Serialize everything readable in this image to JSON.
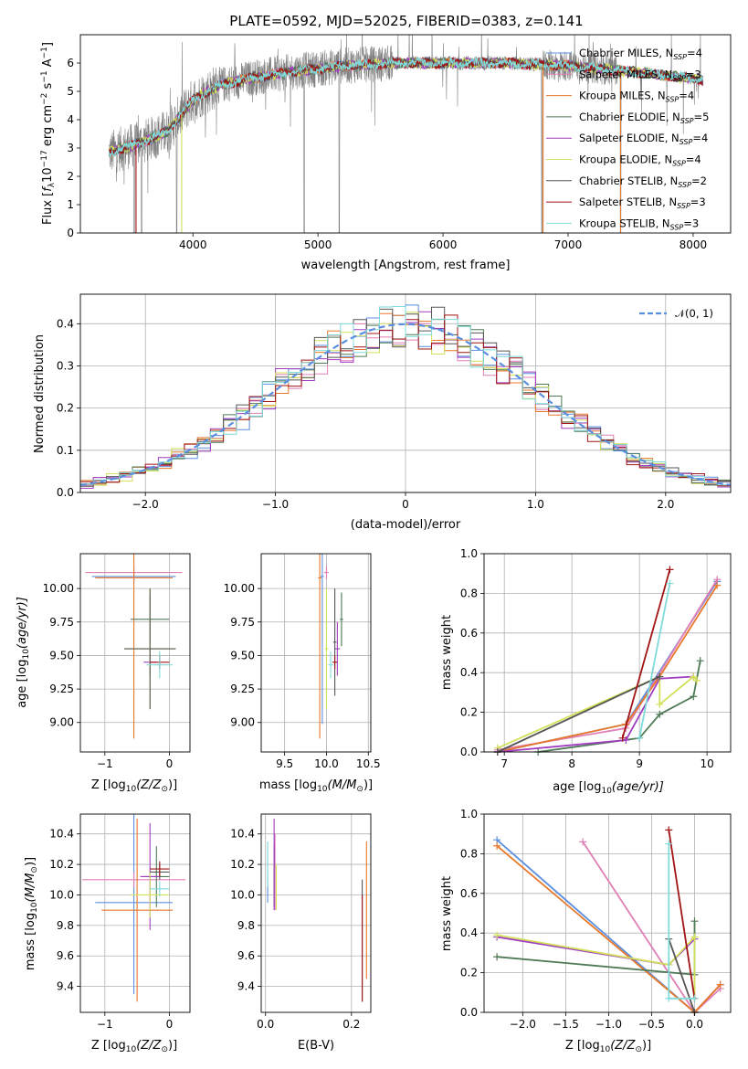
{
  "figure": {
    "title": "PLATE=0592, MJD=52025, FIBERID=0383, z=0.141",
    "colors": {
      "Chabrier MILES": "#5b8fe0",
      "Salpeter MILES": "#e07fb6",
      "Kroupa MILES": "#e8782a",
      "Chabrier ELODIE": "#4e7a55",
      "Salpeter ELODIE": "#a03cc0",
      "Kroupa ELODIE": "#d2e05a",
      "Chabrier STELIB": "#555555",
      "Salpeter STELIB": "#a01414",
      "Kroupa STELIB": "#7fdada",
      "data": "#808080",
      "normal": "#5b8fe0"
    }
  },
  "chart_data": [
    {
      "id": "spectrum",
      "type": "line",
      "title": "PLATE=0592, MJD=52025, FIBERID=0383, z=0.141",
      "xlabel": "wavelength [Angstrom, rest frame]",
      "ylabel": "Flux [f_λ 10^-17 erg cm^-2 s^-1 A^-1]",
      "ylabel_parts": {
        "a": "Flux [",
        "b": "f",
        "c": "λ",
        "d": "10",
        "e": "−17",
        "f": " erg cm",
        "g": "−2",
        "h": " s",
        "i": "−1",
        "j": " A",
        "k": "−1",
        "l": "]"
      },
      "xlim": [
        3100,
        8300
      ],
      "ylim": [
        0,
        7
      ],
      "xticks": [
        4000,
        5000,
        6000,
        7000,
        8000
      ],
      "yticks": [
        0,
        1,
        2,
        3,
        4,
        5,
        6
      ],
      "legend_position": "top-right",
      "series": [
        {
          "name": "Chabrier MILES, N_SSP=4",
          "label": "Chabrier MILES, N",
          "sub": "SSP",
          "n": "=4"
        },
        {
          "name": "Salpeter MILES, N_SSP=3",
          "label": "Salpeter MILES, N",
          "sub": "SSP",
          "n": "=3"
        },
        {
          "name": "Kroupa MILES, N_SSP=4",
          "label": "Kroupa MILES, N",
          "sub": "SSP",
          "n": "=4"
        },
        {
          "name": "Chabrier ELODIE, N_SSP=5",
          "label": "Chabrier ELODIE, N",
          "sub": "SSP",
          "n": "=5"
        },
        {
          "name": "Salpeter ELODIE, N_SSP=4",
          "label": "Salpeter ELODIE, N",
          "sub": "SSP",
          "n": "=4"
        },
        {
          "name": "Kroupa ELODIE, N_SSP=4",
          "label": "Kroupa ELODIE, N",
          "sub": "SSP",
          "n": "=4"
        },
        {
          "name": "Chabrier STELIB, N_SSP=2",
          "label": "Chabrier STELIB, N",
          "sub": "SSP",
          "n": "=2"
        },
        {
          "name": "Salpeter STELIB, N_SSP=3",
          "label": "Salpeter STELIB, N",
          "sub": "SSP",
          "n": "=3"
        },
        {
          "name": "Kroupa STELIB, N_SSP=3",
          "label": "Kroupa STELIB, N",
          "sub": "SSP",
          "n": "=3"
        }
      ],
      "continuum_knots": [
        [
          3300,
          2.8
        ],
        [
          3600,
          3.2
        ],
        [
          3800,
          3.6
        ],
        [
          4000,
          4.7
        ],
        [
          4200,
          5.2
        ],
        [
          4500,
          5.5
        ],
        [
          4800,
          5.7
        ],
        [
          5200,
          5.9
        ],
        [
          5600,
          6.0
        ],
        [
          6000,
          6.0
        ],
        [
          6500,
          6.0
        ],
        [
          7000,
          5.9
        ],
        [
          7500,
          5.7
        ],
        [
          8100,
          5.4
        ]
      ]
    },
    {
      "id": "residuals",
      "type": "line",
      "xlabel": "(data-model)/error",
      "ylabel": "Normed distribution",
      "xlim": [
        -2.5,
        2.5
      ],
      "ylim": [
        0,
        0.47
      ],
      "xticks": [
        -2,
        -1,
        0,
        1,
        2
      ],
      "yticks": [
        0.0,
        0.1,
        0.2,
        0.3,
        0.4
      ],
      "grid": true,
      "legend_position": "top-right",
      "reference": {
        "name": "N(0,1)",
        "label": "𝒩(0, 1)",
        "mean": 0,
        "sigma": 1
      }
    },
    {
      "id": "age_vs_Z",
      "type": "scatter",
      "xlabel_parts": {
        "a": "Z [log",
        "b": "10",
        "c": "(Z/Z",
        "d": "⊙",
        "e": ")]"
      },
      "ylabel_parts": {
        "a": "age  [log",
        "b": "10",
        "c": "(age/yr)]"
      },
      "xlim": [
        -1.38,
        0.32
      ],
      "ylim": [
        8.78,
        10.26
      ],
      "xticks": [
        -1,
        0
      ],
      "yticks": [
        9.0,
        9.25,
        9.5,
        9.75,
        10.0
      ],
      "grid": true,
      "points": [
        {
          "series": "Chabrier MILES",
          "x": -0.55,
          "xerr": 0.65,
          "y": 10.09,
          "yerr": 0.05
        },
        {
          "series": "Salpeter MILES",
          "x": -0.55,
          "xerr": 0.75,
          "y": 10.12,
          "yerr": 0.05
        },
        {
          "series": "Kroupa MILES",
          "x": -0.55,
          "xerr": 0.6,
          "y": 10.08,
          "yerr": 1.2
        },
        {
          "series": "Chabrier ELODIE",
          "x": -0.3,
          "xerr": 0.3,
          "y": 9.77,
          "yerr": 0.18
        },
        {
          "series": "Salpeter ELODIE",
          "x": -0.3,
          "xerr": 0.1,
          "y": 9.45,
          "yerr": 0.1
        },
        {
          "series": "Kroupa ELODIE",
          "x": -0.3,
          "xerr": 0.4,
          "y": 9.55,
          "yerr": 0.45
        },
        {
          "series": "Chabrier STELIB",
          "x": -0.3,
          "xerr": 0.4,
          "y": 9.55,
          "yerr": 0.45
        },
        {
          "series": "Salpeter STELIB",
          "x": -0.15,
          "xerr": 0.15,
          "y": 9.45,
          "yerr": 0.05
        },
        {
          "series": "Kroupa STELIB",
          "x": -0.15,
          "xerr": 0.2,
          "y": 9.43,
          "yerr": 0.1
        }
      ]
    },
    {
      "id": "age_vs_mass",
      "type": "scatter",
      "xlabel_parts": {
        "a": "mass [log",
        "b": "10",
        "c": "(M/M",
        "d": "⊙",
        "e": ")]"
      },
      "xlim": [
        9.22,
        10.53
      ],
      "ylim": [
        8.78,
        10.26
      ],
      "xticks": [
        9.5,
        10.0,
        10.5
      ],
      "yticks": [
        9.0,
        9.25,
        9.5,
        9.75,
        10.0
      ],
      "grid": true,
      "points": [
        {
          "series": "Chabrier MILES",
          "x": 9.95,
          "xerr": 0.02,
          "y": 10.09,
          "yerr": 1.1
        },
        {
          "series": "Salpeter MILES",
          "x": 10.0,
          "xerr": 0.03,
          "y": 10.12,
          "yerr": 0.05
        },
        {
          "series": "Kroupa MILES",
          "x": 9.92,
          "xerr": 0.02,
          "y": 10.08,
          "yerr": 1.2
        },
        {
          "series": "Chabrier ELODIE",
          "x": 10.18,
          "xerr": 0.02,
          "y": 9.77,
          "yerr": 0.2
        },
        {
          "series": "Salpeter ELODIE",
          "x": 10.13,
          "xerr": 0.03,
          "y": 9.55,
          "yerr": 0.2
        },
        {
          "series": "Kroupa ELODIE",
          "x": 10.0,
          "xerr": 0.02,
          "y": 9.55,
          "yerr": 0.45
        },
        {
          "series": "Chabrier STELIB",
          "x": 10.1,
          "xerr": 0.02,
          "y": 9.6,
          "yerr": 0.4
        },
        {
          "series": "Salpeter STELIB",
          "x": 10.1,
          "xerr": 0.03,
          "y": 9.45,
          "yerr": 0.05
        },
        {
          "series": "Kroupa STELIB",
          "x": 10.05,
          "xerr": 0.03,
          "y": 9.43,
          "yerr": 0.1
        }
      ]
    },
    {
      "id": "mass_weight_vs_age",
      "type": "line",
      "xlabel_parts": {
        "a": "age  [log",
        "b": "10",
        "c": "(age/yr)]"
      },
      "ylabel": "mass weight",
      "xlim": [
        6.7,
        10.35
      ],
      "ylim": [
        0,
        1
      ],
      "xticks": [
        7,
        8,
        9,
        10
      ],
      "yticks": [
        0.0,
        0.2,
        0.4,
        0.6,
        0.8,
        1.0
      ],
      "grid": true,
      "series": [
        {
          "name": "Chabrier MILES",
          "x": [
            6.9,
            8.8,
            10.15
          ],
          "y": [
            0.0,
            0.14,
            0.86
          ]
        },
        {
          "name": "Salpeter MILES",
          "x": [
            6.9,
            8.8,
            10.15
          ],
          "y": [
            0.01,
            0.12,
            0.87
          ]
        },
        {
          "name": "Kroupa MILES",
          "x": [
            6.9,
            8.8,
            9.3,
            10.15
          ],
          "y": [
            0.0,
            0.14,
            0.38,
            0.84
          ]
        },
        {
          "name": "Chabrier ELODIE",
          "x": [
            7.5,
            9.0,
            9.3,
            9.8,
            9.9
          ],
          "y": [
            0.0,
            0.07,
            0.19,
            0.28,
            0.46
          ]
        },
        {
          "name": "Salpeter ELODIE",
          "x": [
            6.9,
            8.8,
            9.3,
            9.8
          ],
          "y": [
            0.0,
            0.06,
            0.37,
            0.38
          ]
        },
        {
          "name": "Kroupa ELODIE",
          "x": [
            6.9,
            9.3,
            9.3,
            9.8,
            9.85
          ],
          "y": [
            0.02,
            0.38,
            0.24,
            0.38,
            0.36
          ]
        },
        {
          "name": "Chabrier STELIB",
          "x": [
            6.9,
            9.3
          ],
          "y": [
            0.0,
            0.38
          ]
        },
        {
          "name": "Salpeter STELIB",
          "x": [
            8.75,
            9.45
          ],
          "y": [
            0.07,
            0.92
          ]
        },
        {
          "name": "Kroupa STELIB",
          "x": [
            9.0,
            9.45
          ],
          "y": [
            0.07,
            0.85
          ]
        }
      ]
    },
    {
      "id": "mass_vs_Z",
      "type": "scatter",
      "xlabel_parts": {
        "a": "Z [log",
        "b": "10",
        "c": "(Z/Z",
        "d": "⊙",
        "e": ")]"
      },
      "ylabel_parts": {
        "a": "mass [log",
        "b": "10",
        "c": "(M/M",
        "d": "⊙",
        "e": ")]"
      },
      "xlim": [
        -1.38,
        0.32
      ],
      "ylim": [
        9.23,
        10.53
      ],
      "xticks": [
        -1,
        0
      ],
      "yticks": [
        9.4,
        9.6,
        9.8,
        10.0,
        10.2,
        10.4
      ],
      "grid": true,
      "points": [
        {
          "series": "Chabrier MILES",
          "x": -0.55,
          "xerr": 0.6,
          "y": 9.95,
          "yerr": 0.6
        },
        {
          "series": "Salpeter MILES",
          "x": -0.55,
          "xerr": 0.8,
          "y": 10.1,
          "yerr": 0.05
        },
        {
          "series": "Kroupa MILES",
          "x": -0.5,
          "xerr": 0.55,
          "y": 9.9,
          "yerr": 0.6
        },
        {
          "series": "Chabrier ELODIE",
          "x": -0.2,
          "xerr": 0.2,
          "y": 10.12,
          "yerr": 0.2
        },
        {
          "series": "Salpeter ELODIE",
          "x": -0.3,
          "xerr": 0.15,
          "y": 10.12,
          "yerr": 0.35
        },
        {
          "series": "Kroupa ELODIE",
          "x": -0.3,
          "xerr": 0.3,
          "y": 10.0,
          "yerr": 0.15
        },
        {
          "series": "Chabrier STELIB",
          "x": -0.15,
          "xerr": 0.15,
          "y": 10.15,
          "yerr": 0.05
        },
        {
          "series": "Salpeter STELIB",
          "x": -0.15,
          "xerr": 0.15,
          "y": 10.17,
          "yerr": 0.05
        },
        {
          "series": "Kroupa STELIB",
          "x": -0.15,
          "xerr": 0.15,
          "y": 10.04,
          "yerr": 0.05
        }
      ]
    },
    {
      "id": "mass_vs_ebv",
      "type": "scatter",
      "xlabel": "E(B-V)",
      "xlim": [
        -0.01,
        0.245
      ],
      "ylim": [
        9.23,
        10.53
      ],
      "xticks": [
        0.0,
        0.2
      ],
      "yticks": [
        9.4,
        9.6,
        9.8,
        10.0,
        10.2,
        10.4
      ],
      "grid": true,
      "points": [
        {
          "series": "Chabrier MILES",
          "x": 0.005,
          "xerr": 0.0,
          "y": 10.05,
          "yerr": 0.1
        },
        {
          "series": "Salpeter MILES",
          "x": 0.022,
          "xerr": 0.0,
          "y": 10.15,
          "yerr": 0.25
        },
        {
          "series": "Kroupa MILES",
          "x": 0.235,
          "xerr": 0.0,
          "y": 9.9,
          "yerr": 0.45
        },
        {
          "series": "Chabrier ELODIE",
          "x": 0.02,
          "xerr": 0.0,
          "y": 10.12,
          "yerr": 0.2
        },
        {
          "series": "Salpeter ELODIE",
          "x": 0.02,
          "xerr": 0.0,
          "y": 10.2,
          "yerr": 0.3
        },
        {
          "series": "Kroupa ELODIE",
          "x": 0.025,
          "xerr": 0.0,
          "y": 10.05,
          "yerr": 0.15
        },
        {
          "series": "Chabrier STELIB",
          "x": 0.225,
          "xerr": 0.0,
          "y": 9.7,
          "yerr": 0.4
        },
        {
          "series": "Salpeter STELIB",
          "x": 0.225,
          "xerr": 0.0,
          "y": 9.65,
          "yerr": 0.35
        },
        {
          "series": "Kroupa STELIB",
          "x": 0.005,
          "xerr": 0.0,
          "y": 10.2,
          "yerr": 0.15
        }
      ]
    },
    {
      "id": "mass_weight_vs_Z",
      "type": "line",
      "xlabel_parts": {
        "a": "Z [log",
        "b": "10",
        "c": "(Z/Z",
        "d": "⊙",
        "e": ")]"
      },
      "ylabel": "mass weight",
      "xlim": [
        -2.45,
        0.42
      ],
      "ylim": [
        0,
        1
      ],
      "xticks": [
        -2.0,
        -1.5,
        -1.0,
        -0.5,
        0.0
      ],
      "yticks": [
        0.0,
        0.2,
        0.4,
        0.6,
        0.8,
        1.0
      ],
      "grid": true,
      "series": [
        {
          "name": "Chabrier MILES",
          "x": [
            -2.3,
            0.0,
            0.3
          ],
          "y": [
            0.87,
            0.0,
            0.14
          ]
        },
        {
          "name": "Salpeter MILES",
          "x": [
            -1.3,
            0.0,
            0.3
          ],
          "y": [
            0.86,
            0.0,
            0.12
          ]
        },
        {
          "name": "Kroupa MILES",
          "x": [
            -2.3,
            0.0,
            0.3
          ],
          "y": [
            0.84,
            0.0,
            0.14
          ]
        },
        {
          "name": "Chabrier ELODIE",
          "x": [
            -2.3,
            0.0,
            0.0
          ],
          "y": [
            0.28,
            0.19,
            0.46
          ]
        },
        {
          "name": "Salpeter ELODIE",
          "x": [
            -2.3,
            -0.3,
            0.0
          ],
          "y": [
            0.38,
            0.24,
            0.37
          ]
        },
        {
          "name": "Kroupa ELODIE",
          "x": [
            -2.3,
            -0.3,
            0.0,
            0.0
          ],
          "y": [
            0.39,
            0.24,
            0.38,
            0.07
          ]
        },
        {
          "name": "Chabrier STELIB",
          "x": [
            -0.3,
            0.0
          ],
          "y": [
            0.37,
            0.0
          ]
        },
        {
          "name": "Salpeter STELIB",
          "x": [
            -0.3,
            0.0
          ],
          "y": [
            0.92,
            0.07
          ]
        },
        {
          "name": "Kroupa STELIB",
          "x": [
            -0.3,
            -0.3,
            0.0
          ],
          "y": [
            0.85,
            0.07,
            0.07
          ]
        }
      ]
    }
  ]
}
